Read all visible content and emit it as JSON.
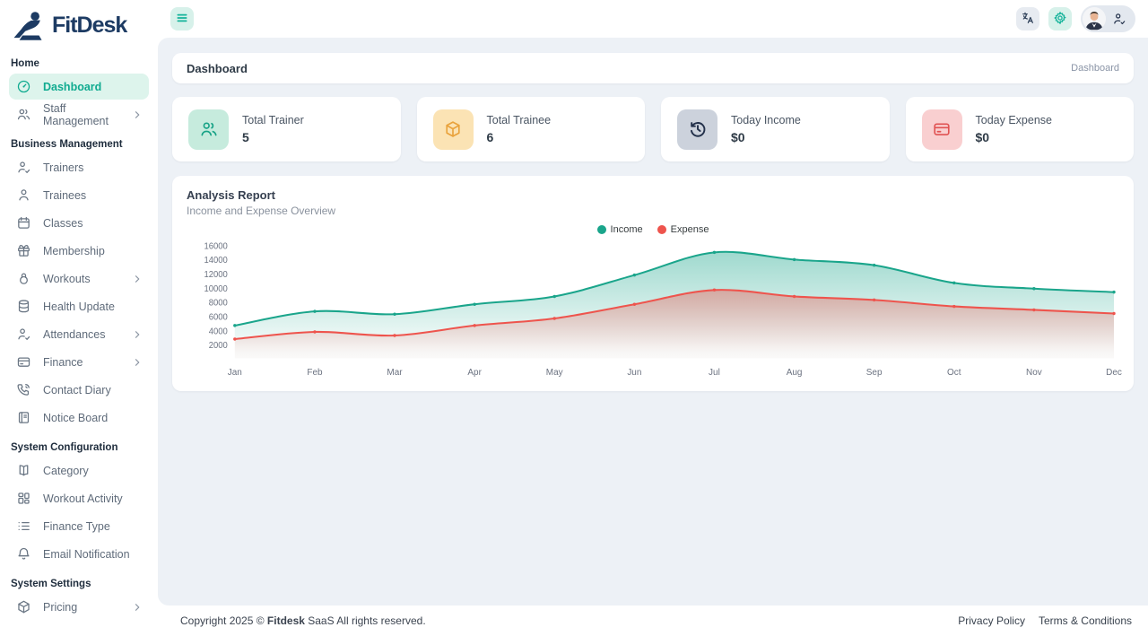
{
  "brand": {
    "name": "FitDesk",
    "logo_icon": "fitdesk-logo-icon",
    "color": "#1d3b63"
  },
  "topbar": {
    "menu_icon": "menu-icon",
    "buttons": [
      {
        "name": "language-button",
        "icon": "translate-icon",
        "style": "grey"
      },
      {
        "name": "settings-button",
        "icon": "gear-icon",
        "style": "mint"
      }
    ],
    "user": {
      "avatar_icon": "avatar",
      "badge_icon": "user-check-icon"
    }
  },
  "sidebar": {
    "sections": [
      {
        "label": "Home",
        "items": [
          {
            "label": "Dashboard",
            "icon": "dashboard-icon",
            "active": true,
            "chevron": false
          },
          {
            "label": "Staff Management",
            "icon": "users-icon",
            "active": false,
            "chevron": true
          }
        ]
      },
      {
        "label": "Business Management",
        "items": [
          {
            "label": "Trainers",
            "icon": "user-check-icon",
            "active": false,
            "chevron": false
          },
          {
            "label": "Trainees",
            "icon": "user-icon",
            "active": false,
            "chevron": false
          },
          {
            "label": "Classes",
            "icon": "calendar-icon",
            "active": false,
            "chevron": false
          },
          {
            "label": "Membership",
            "icon": "gift-icon",
            "active": false,
            "chevron": false
          },
          {
            "label": "Workouts",
            "icon": "kettlebell-icon",
            "active": false,
            "chevron": true
          },
          {
            "label": "Health Update",
            "icon": "database-icon",
            "active": false,
            "chevron": false
          },
          {
            "label": "Attendances",
            "icon": "user-check-icon",
            "active": false,
            "chevron": true
          },
          {
            "label": "Finance",
            "icon": "credit-card-icon",
            "active": false,
            "chevron": true
          },
          {
            "label": "Contact Diary",
            "icon": "phone-icon",
            "active": false,
            "chevron": false
          },
          {
            "label": "Notice Board",
            "icon": "notebook-icon",
            "active": false,
            "chevron": false
          }
        ]
      },
      {
        "label": "System Configuration",
        "items": [
          {
            "label": "Category",
            "icon": "book-icon",
            "active": false,
            "chevron": false
          },
          {
            "label": "Workout Activity",
            "icon": "layout-grid-icon",
            "active": false,
            "chevron": false
          },
          {
            "label": "Finance Type",
            "icon": "list-icon",
            "active": false,
            "chevron": false
          },
          {
            "label": "Email Notification",
            "icon": "bell-icon",
            "active": false,
            "chevron": false
          }
        ]
      },
      {
        "label": "System Settings",
        "items": [
          {
            "label": "Pricing",
            "icon": "package-icon",
            "active": false,
            "chevron": true
          }
        ]
      }
    ]
  },
  "breadcrumb": {
    "title": "Dashboard",
    "path": "Dashboard"
  },
  "stats": [
    {
      "label": "Total Trainer",
      "value": "5",
      "icon": "users-icon",
      "icon_color": "#17a286",
      "icon_bg": "#c6ebdd"
    },
    {
      "label": "Total Trainee",
      "value": "6",
      "icon": "cube-icon",
      "icon_color": "#e9a23b",
      "icon_bg": "#fbe3b4"
    },
    {
      "label": "Today Income",
      "value": "$0",
      "icon": "history-icon",
      "icon_color": "#22304a",
      "icon_bg": "#ccd2dc"
    },
    {
      "label": "Today Expense",
      "value": "$0",
      "icon": "credit-card-icon",
      "icon_color": "#e05252",
      "icon_bg": "#f9cfd0"
    }
  ],
  "chart_data": {
    "type": "area",
    "title": "Analysis Report",
    "subtitle": "Income and Expense Overview",
    "categories": [
      "Jan",
      "Feb",
      "Mar",
      "Apr",
      "May",
      "Jun",
      "Jul",
      "Aug",
      "Sep",
      "Oct",
      "Nov",
      "Dec"
    ],
    "series": [
      {
        "name": "Income",
        "color": "#1aa58b",
        "values": [
          4800,
          6800,
          6400,
          7800,
          8900,
          11900,
          15100,
          14100,
          13300,
          10800,
          10000,
          9500
        ]
      },
      {
        "name": "Expense",
        "color": "#ee544d",
        "values": [
          2900,
          3900,
          3400,
          4800,
          5800,
          7800,
          9800,
          8900,
          8400,
          7500,
          7000,
          6500
        ]
      }
    ],
    "yticks": [
      2000,
      4000,
      6000,
      8000,
      10000,
      12000,
      14000,
      16000
    ],
    "ylim": [
      2000,
      16000
    ],
    "legend_position": "top-center",
    "grid": false,
    "smooth": true
  },
  "footer": {
    "copyright_prefix": "Copyright 2025 © ",
    "brand": "Fitdesk",
    "copyright_suffix": " SaaS All rights reserved.",
    "links": [
      "Privacy Policy",
      "Terms & Conditions"
    ]
  }
}
